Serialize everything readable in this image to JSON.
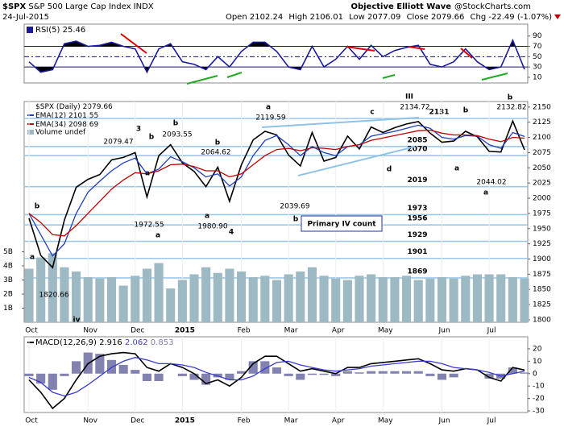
{
  "credits": [
    "Objective Elliott Wave",
    "@StockCharts.com"
  ],
  "chart_data": [
    {
      "type": "line",
      "ylim": [
        -1,
        113
      ],
      "yticks": [
        10,
        30,
        50,
        70,
        90
      ],
      "hlines": [
        30,
        50,
        70
      ],
      "series": [
        {
          "name": "RSI(5)",
          "color": "#1a1a9a",
          "values": [
            40,
            20,
            25,
            75,
            80,
            70,
            72,
            78,
            70,
            65,
            20,
            65,
            75,
            40,
            35,
            25,
            50,
            30,
            60,
            78,
            78,
            60,
            30,
            25,
            70,
            30,
            45,
            70,
            45,
            72,
            50,
            62,
            68,
            72,
            35,
            30,
            40,
            65,
            40,
            25,
            30,
            82,
            25.46
          ]
        }
      ]
    },
    {
      "type": "line",
      "title": "$SPX",
      "subtitle": "S&P 500 Large Cap Index INDX",
      "date": "24-Jul-2015",
      "quote": [
        {
          "label": "Open",
          "value": 2102.24
        },
        {
          "label": "High",
          "value": 2106.01
        },
        {
          "label": "Low",
          "value": 2077.09
        },
        {
          "label": "Close",
          "value": 2079.66
        },
        {
          "label": "Chg",
          "text": "-22.49 (-1.07%)"
        }
      ],
      "categories": [
        "Oct",
        null,
        null,
        null,
        null,
        "Nov",
        null,
        null,
        null,
        "Dec",
        null,
        null,
        null,
        "2015",
        null,
        null,
        null,
        null,
        "Feb",
        null,
        null,
        null,
        "Mar",
        null,
        null,
        null,
        "Apr",
        null,
        null,
        null,
        "May",
        null,
        null,
        null,
        null,
        "Jun",
        null,
        null,
        null,
        "Jul",
        null,
        null,
        null
      ],
      "ylim": [
        1796,
        2159
      ],
      "yticks": [
        1800,
        1825,
        1850,
        1875,
        1900,
        1925,
        1950,
        1975,
        2000,
        2025,
        2050,
        2075,
        2100,
        2125,
        2150
      ],
      "y2lim": [
        0,
        15.66
      ],
      "y2ticks": [
        {
          "value": 1,
          "label": "1B"
        },
        {
          "value": 2,
          "label": "2B"
        },
        {
          "value": 3,
          "label": "3B"
        },
        {
          "value": 4,
          "label": "4B"
        },
        {
          "value": 5,
          "label": "5B"
        }
      ],
      "levels": [
        2131,
        2085,
        2070,
        2019,
        1973,
        1956,
        1929,
        1901,
        1869
      ],
      "series": [
        {
          "name": "$SPX (Daily)",
          "color": "#000000",
          "values": [
            1967,
            1906,
            1886,
            1964,
            2018,
            2031,
            2039,
            2063,
            2067,
            2075,
            2002,
            2070,
            2088,
            2058,
            2044,
            2019,
            2051,
            1995,
            2055,
            2096,
            2110,
            2104,
            2071,
            2053,
            2108,
            2061,
            2067,
            2102,
            2081,
            2117,
            2108,
            2116,
            2122,
            2126,
            2107,
            2092,
            2094,
            2110,
            2101,
            2077,
            2076,
            2127,
            2079.66
          ]
        },
        {
          "name": "EMA(12)",
          "color": "#1f3fbf",
          "values": [
            1975,
            1940,
            1905,
            1925,
            1975,
            2010,
            2028,
            2045,
            2058,
            2066,
            2040,
            2048,
            2068,
            2060,
            2050,
            2035,
            2040,
            2020,
            2035,
            2070,
            2095,
            2103,
            2088,
            2070,
            2085,
            2075,
            2070,
            2085,
            2088,
            2102,
            2106,
            2110,
            2115,
            2120,
            2115,
            2100,
            2097,
            2103,
            2102,
            2088,
            2082,
            2108,
            2101.55
          ]
        },
        {
          "name": "EMA(34)",
          "color": "#c00000",
          "values": [
            1975,
            1960,
            1940,
            1938,
            1955,
            1975,
            1995,
            2015,
            2030,
            2042,
            2040,
            2045,
            2055,
            2056,
            2052,
            2045,
            2045,
            2035,
            2040,
            2055,
            2070,
            2080,
            2082,
            2078,
            2083,
            2082,
            2080,
            2085,
            2088,
            2095,
            2099,
            2103,
            2107,
            2111,
            2112,
            2107,
            2104,
            2104,
            2103,
            2097,
            2093,
            2100,
            2098.69
          ]
        },
        {
          "name": "Volume undef",
          "type": "bar",
          "axis": "y2",
          "color": "#9db9c3",
          "values": [
            3.8,
            4.6,
            4.9,
            3.9,
            3.6,
            3.2,
            3.1,
            3.2,
            2.6,
            3.3,
            3.8,
            4.2,
            2.4,
            3.0,
            3.4,
            3.9,
            3.5,
            3.8,
            3.6,
            3.2,
            3.3,
            3.0,
            3.4,
            3.6,
            3.9,
            3.3,
            3.1,
            3.0,
            3.3,
            3.4,
            3.2,
            3.2,
            3.3,
            3.0,
            3.1,
            3.2,
            3.1,
            3.3,
            3.4,
            3.4,
            3.4,
            3.2,
            3.1
          ]
        }
      ],
      "annotations": [
        "3",
        "b",
        "2079.47",
        "a",
        "1972.55",
        "a",
        "2093.55",
        "b",
        "2064.62",
        "b",
        "1980.90",
        "a",
        "4",
        "2119.59",
        "a",
        "2039.69",
        "b",
        "III",
        "2134.72",
        "c",
        "d",
        "b",
        "a",
        "2044.02",
        "a",
        "2132.82",
        "b",
        "1820.66",
        "iv",
        "b",
        "a"
      ],
      "note": "Primary IV count"
    },
    {
      "type": "line",
      "categories": [
        "Oct",
        null,
        null,
        null,
        null,
        "Nov",
        null,
        null,
        null,
        "Dec",
        null,
        null,
        null,
        "2015",
        null,
        null,
        null,
        null,
        "Feb",
        null,
        null,
        null,
        "Mar",
        null,
        null,
        null,
        "Apr",
        null,
        null,
        null,
        "May",
        null,
        null,
        null,
        null,
        "Jun",
        null,
        null,
        null,
        "Jul",
        null,
        null,
        null
      ],
      "ylim": [
        -31.3,
        29.7
      ],
      "yticks": [
        -30,
        -20,
        -10,
        0,
        10,
        20
      ],
      "series": [
        {
          "name": "MACD(12,26,9)",
          "color": "#000000",
          "values": [
            -5,
            -15,
            -28,
            -20,
            -5,
            8,
            14,
            16,
            17,
            16,
            5,
            2,
            8,
            5,
            0,
            -8,
            -5,
            -10,
            -3,
            8,
            14,
            14,
            8,
            2,
            4,
            2,
            0,
            5,
            5,
            8,
            9,
            10,
            11,
            12,
            8,
            3,
            2,
            4,
            3,
            -3,
            -6,
            5,
            2.916
          ]
        },
        {
          "color": "#3a3ad0",
          "values": [
            -3,
            -7,
            -15,
            -18,
            -15,
            -9,
            -2,
            5,
            10,
            13,
            11,
            8,
            8,
            7,
            5,
            1,
            -2,
            -5,
            -5,
            -2,
            4,
            9,
            10,
            7,
            5,
            3,
            2,
            3,
            4,
            6,
            7,
            8,
            9,
            10,
            10,
            8,
            5,
            4,
            3,
            1,
            -2,
            0,
            2.062
          ]
        },
        {
          "type": "bar",
          "color": "#8282b0",
          "values": [
            -2,
            -8,
            -13,
            -2,
            10,
            17,
            16,
            11,
            7,
            3,
            -6,
            -6,
            0,
            -2,
            -5,
            -9,
            -3,
            -5,
            2,
            10,
            10,
            5,
            -2,
            -5,
            -1,
            -1,
            -2,
            2,
            1,
            2,
            2,
            2,
            2,
            2,
            -2,
            -5,
            -3,
            0,
            0,
            -4,
            -4,
            5,
            0.853
          ]
        }
      ]
    }
  ]
}
